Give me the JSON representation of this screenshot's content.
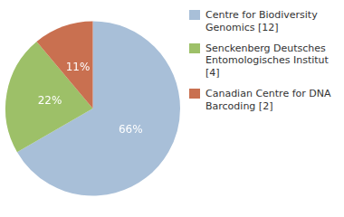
{
  "chart_data": {
    "type": "pie",
    "categories": [
      "Centre for Biodiversity\nGenomics [12]",
      "Senckenberg Deutsches\nEntomologisches Institut [4]",
      "Canadian Centre for DNA\nBarcoding [2]"
    ],
    "values": [
      66,
      22,
      11
    ],
    "value_labels": [
      "66%",
      "22%",
      "11%"
    ],
    "colors": [
      "#a8bfd8",
      "#9dc068",
      "#c97050"
    ],
    "data_labels": true,
    "legend": "upper right"
  }
}
